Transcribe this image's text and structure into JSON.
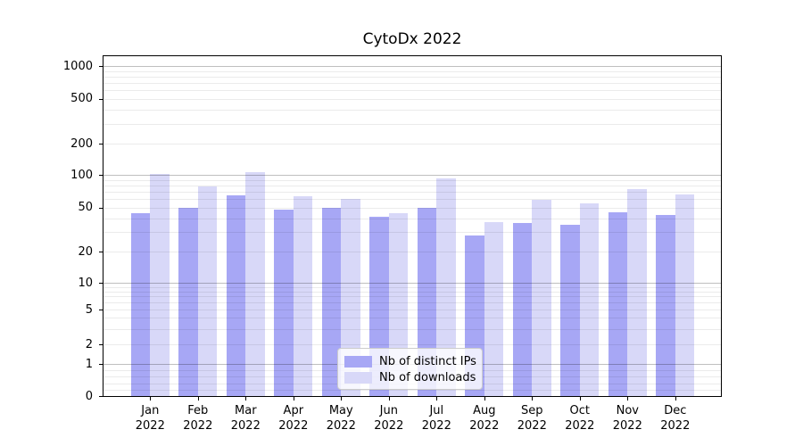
{
  "title": "CytoDx 2022",
  "legend": {
    "items": [
      {
        "label": "Nb of distinct IPs",
        "color": "#a7a7f5"
      },
      {
        "label": "Nb of downloads",
        "color": "#d8d8f8"
      }
    ]
  },
  "chart_data": {
    "type": "bar",
    "title": "CytoDx 2022",
    "categories": [
      "Jan 2022",
      "Feb 2022",
      "Mar 2022",
      "Apr 2022",
      "May 2022",
      "Jun 2022",
      "Jul 2022",
      "Aug 2022",
      "Sep 2022",
      "Oct 2022",
      "Nov 2022",
      "Dec 2022"
    ],
    "series": [
      {
        "name": "Nb of distinct IPs",
        "color": "#a7a7f5",
        "values": [
          44,
          50,
          65,
          48,
          50,
          41,
          50,
          28,
          36,
          35,
          45,
          43
        ]
      },
      {
        "name": "Nb of downloads",
        "color": "#d8d8f8",
        "values": [
          103,
          78,
          106,
          63,
          60,
          44,
          93,
          37,
          59,
          54,
          74,
          66
        ]
      }
    ],
    "xlabel": "",
    "ylabel": "",
    "y_scale": "symlog",
    "y_ticks": [
      0,
      1,
      2,
      5,
      10,
      20,
      50,
      100,
      200,
      500,
      1000
    ],
    "ylim": [
      0,
      1250
    ],
    "grid": true,
    "grid_position": "above-bars",
    "legend_position": "lower center"
  }
}
